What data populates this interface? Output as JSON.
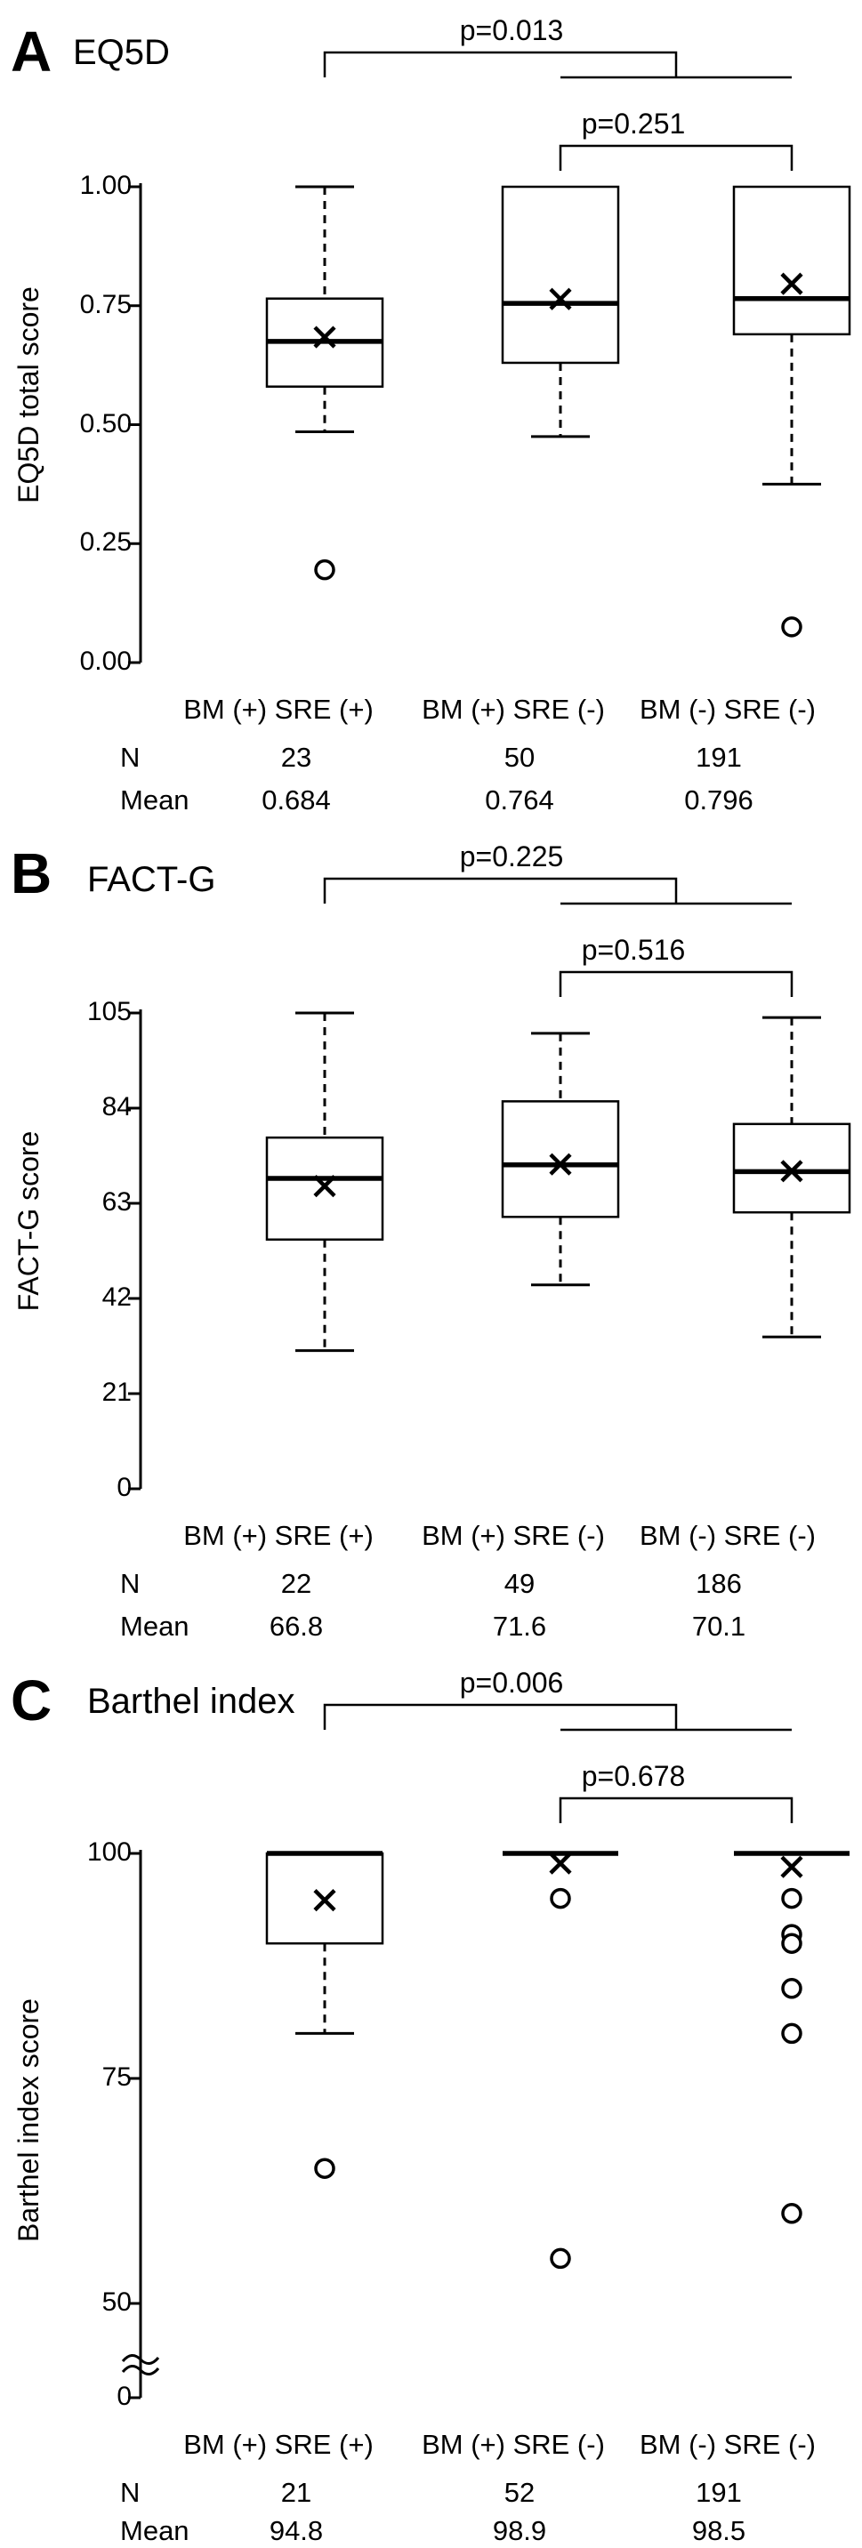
{
  "panels": [
    {
      "letter": "A",
      "title": "EQ5D",
      "ylabel": "EQ5D total score",
      "ytick_labels": [
        "0.00",
        "0.25",
        "0.50",
        "0.75",
        "1.00"
      ],
      "pvalue_outer": "p=0.013",
      "pvalue_inner": "p=0.251",
      "row_labels": {
        "n": "N",
        "mean": "Mean"
      },
      "chart_data": {
        "type": "box",
        "ylim": [
          0,
          1.0
        ],
        "yticks": [
          0,
          0.25,
          0.5,
          0.75,
          1.0
        ],
        "axis_break": false,
        "groups": [
          {
            "label": "BM (+) SRE (+)",
            "n": "23",
            "mean_label": "0.684",
            "mean": 0.684,
            "whisker_low": 0.485,
            "q1": 0.58,
            "median": 0.675,
            "q3": 0.765,
            "whisker_high": 1.0,
            "outliers": [
              0.195
            ]
          },
          {
            "label": "BM (+) SRE (-)",
            "n": "50",
            "mean_label": "0.764",
            "mean": 0.764,
            "whisker_low": 0.475,
            "q1": 0.63,
            "median": 0.755,
            "q3": 1.0,
            "whisker_high": 1.0,
            "outliers": []
          },
          {
            "label": "BM (-) SRE (-)",
            "n": "191",
            "mean_label": "0.796",
            "mean": 0.796,
            "whisker_low": 0.375,
            "q1": 0.69,
            "median": 0.765,
            "q3": 1.0,
            "whisker_high": 1.0,
            "outliers": [
              0.075
            ]
          }
        ]
      }
    },
    {
      "letter": "B",
      "title": "FACT-G",
      "ylabel": "FACT-G score",
      "ytick_labels": [
        "0",
        "21",
        "42",
        "63",
        "84",
        "105"
      ],
      "pvalue_outer": "p=0.225",
      "pvalue_inner": "p=0.516",
      "row_labels": {
        "n": "N",
        "mean": "Mean"
      },
      "chart_data": {
        "type": "box",
        "ylim": [
          0,
          105
        ],
        "yticks": [
          0,
          21,
          42,
          63,
          84,
          105
        ],
        "axis_break": false,
        "groups": [
          {
            "label": "BM (+) SRE (+)",
            "n": "22",
            "mean_label": "66.8",
            "mean": 66.8,
            "whisker_low": 30.5,
            "q1": 55,
            "median": 68.5,
            "q3": 77.5,
            "whisker_high": 105,
            "outliers": []
          },
          {
            "label": "BM (+) SRE (-)",
            "n": "49",
            "mean_label": "71.6",
            "mean": 71.6,
            "whisker_low": 45,
            "q1": 60,
            "median": 71.5,
            "q3": 85.5,
            "whisker_high": 100.5,
            "outliers": []
          },
          {
            "label": "BM (-) SRE (-)",
            "n": "186",
            "mean_label": "70.1",
            "mean": 70.1,
            "whisker_low": 33.5,
            "q1": 61,
            "median": 70,
            "q3": 80.5,
            "whisker_high": 104,
            "outliers": []
          }
        ]
      }
    },
    {
      "letter": "C",
      "title": "Barthel index",
      "ylabel": "Barthel index score",
      "ytick_labels": [
        "0",
        "50",
        "75",
        "100"
      ],
      "pvalue_outer": "p=0.006",
      "pvalue_inner": "p=0.678",
      "row_labels": {
        "n": "N",
        "mean": "Mean"
      },
      "chart_data": {
        "type": "box",
        "ylim": [
          0,
          100
        ],
        "yticks": [
          0,
          50,
          75,
          100
        ],
        "axis_break": true,
        "groups": [
          {
            "label": "BM (+) SRE (+)",
            "n": "21",
            "mean_label": "94.8",
            "mean": 94.8,
            "whisker_low": 80,
            "q1": 90,
            "median": 100,
            "q3": 100,
            "whisker_high": 100,
            "outliers": [
              65
            ]
          },
          {
            "label": "BM (+) SRE (-)",
            "n": "52",
            "mean_label": "98.9",
            "mean": 98.9,
            "whisker_low": 100,
            "q1": 100,
            "median": 100,
            "q3": 100,
            "whisker_high": 100,
            "outliers": [
              95,
              55
            ]
          },
          {
            "label": "BM (-) SRE (-)",
            "n": "191",
            "mean_label": "98.5",
            "mean": 98.5,
            "whisker_low": 100,
            "q1": 100,
            "median": 100,
            "q3": 100,
            "whisker_high": 100,
            "outliers": [
              95,
              91,
              90,
              85,
              80,
              60
            ]
          }
        ]
      }
    }
  ]
}
